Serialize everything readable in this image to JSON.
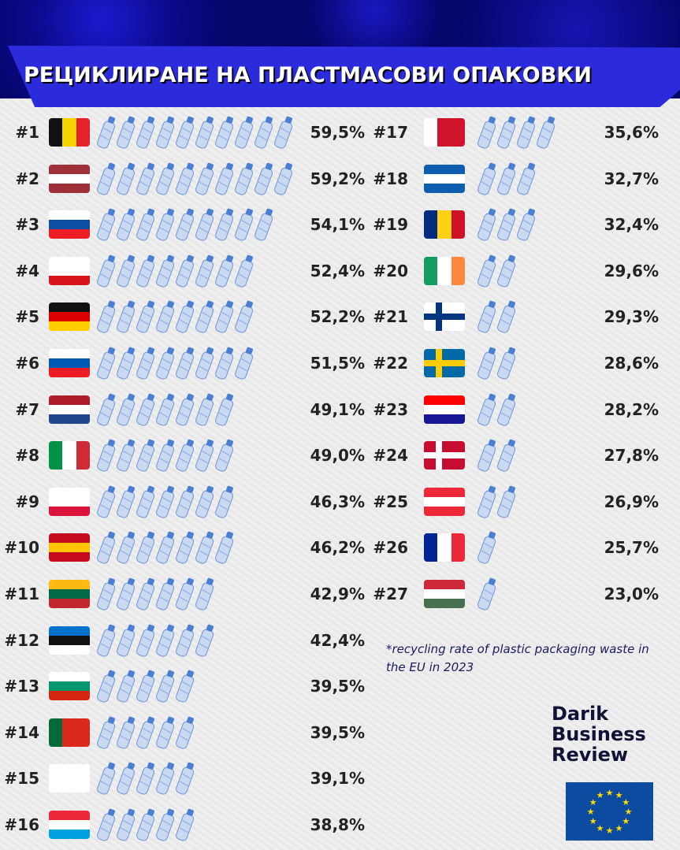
{
  "title": "РЕЦИКЛИРАНЕ НА ПЛАСТМАСОВИ ОПАКОВКИ",
  "footnote": "*recycling rate of plastic packaging waste in the EU in 2023",
  "logo": {
    "line1": "Darik",
    "line2": "Business",
    "line3": "Review"
  },
  "colors": {
    "banner": "#2b2bdc",
    "background_top": "#05056a",
    "text": "#222222",
    "bottle": "#a9c4ea"
  },
  "chart_data": {
    "type": "bar",
    "style": "pictogram (plastic bottle icons), ranked",
    "unit": "%",
    "items": [
      {
        "rank": "#1",
        "flag": "flag-belgium",
        "value": 59.5,
        "label": "59,5%"
      },
      {
        "rank": "#2",
        "flag": "flag-latvia",
        "value": 59.2,
        "label": "59,2%"
      },
      {
        "rank": "#3",
        "flag": "flag-slovakia",
        "value": 54.1,
        "label": "54,1%"
      },
      {
        "rank": "#4",
        "flag": "flag-czechia",
        "value": 52.4,
        "label": "52,4%"
      },
      {
        "rank": "#5",
        "flag": "flag-germany",
        "value": 52.2,
        "label": "52,2%"
      },
      {
        "rank": "#6",
        "flag": "flag-slovenia",
        "value": 51.5,
        "label": "51,5%"
      },
      {
        "rank": "#7",
        "flag": "flag-netherlands",
        "value": 49.1,
        "label": "49,1%"
      },
      {
        "rank": "#8",
        "flag": "flag-italy",
        "value": 49.0,
        "label": "49,0%"
      },
      {
        "rank": "#9",
        "flag": "flag-poland",
        "value": 46.3,
        "label": "46,3%"
      },
      {
        "rank": "#10",
        "flag": "flag-spain",
        "value": 46.2,
        "label": "46,2%"
      },
      {
        "rank": "#11",
        "flag": "flag-lithuania",
        "value": 42.9,
        "label": "42,9%"
      },
      {
        "rank": "#12",
        "flag": "flag-estonia",
        "value": 42.4,
        "label": "42,4%"
      },
      {
        "rank": "#13",
        "flag": "flag-bulgaria",
        "value": 39.5,
        "label": "39,5%"
      },
      {
        "rank": "#14",
        "flag": "flag-portugal",
        "value": 39.5,
        "label": "39,5%"
      },
      {
        "rank": "#15",
        "flag": "flag-cyprus",
        "value": 39.1,
        "label": "39,1%"
      },
      {
        "rank": "#16",
        "flag": "flag-luxembourg",
        "value": 38.8,
        "label": "38,8%"
      },
      {
        "rank": "#17",
        "flag": "flag-malta",
        "value": 35.6,
        "label": "35,6%"
      },
      {
        "rank": "#18",
        "flag": "flag-greece",
        "value": 32.7,
        "label": "32,7%"
      },
      {
        "rank": "#19",
        "flag": "flag-romania",
        "value": 32.4,
        "label": "32,4%"
      },
      {
        "rank": "#20",
        "flag": "flag-ireland",
        "value": 29.6,
        "label": "29,6%"
      },
      {
        "rank": "#21",
        "flag": "flag-finland",
        "value": 29.3,
        "label": "29,3%"
      },
      {
        "rank": "#22",
        "flag": "flag-sweden",
        "value": 28.6,
        "label": "28,6%"
      },
      {
        "rank": "#23",
        "flag": "flag-croatia",
        "value": 28.2,
        "label": "28,2%"
      },
      {
        "rank": "#24",
        "flag": "flag-denmark",
        "value": 27.8,
        "label": "27,8%"
      },
      {
        "rank": "#25",
        "flag": "flag-austria",
        "value": 26.9,
        "label": "26,9%"
      },
      {
        "rank": "#26",
        "flag": "flag-france",
        "value": 25.7,
        "label": "25,7%"
      },
      {
        "rank": "#27",
        "flag": "flag-hungary",
        "value": 23.0,
        "label": "23,0%"
      }
    ]
  }
}
